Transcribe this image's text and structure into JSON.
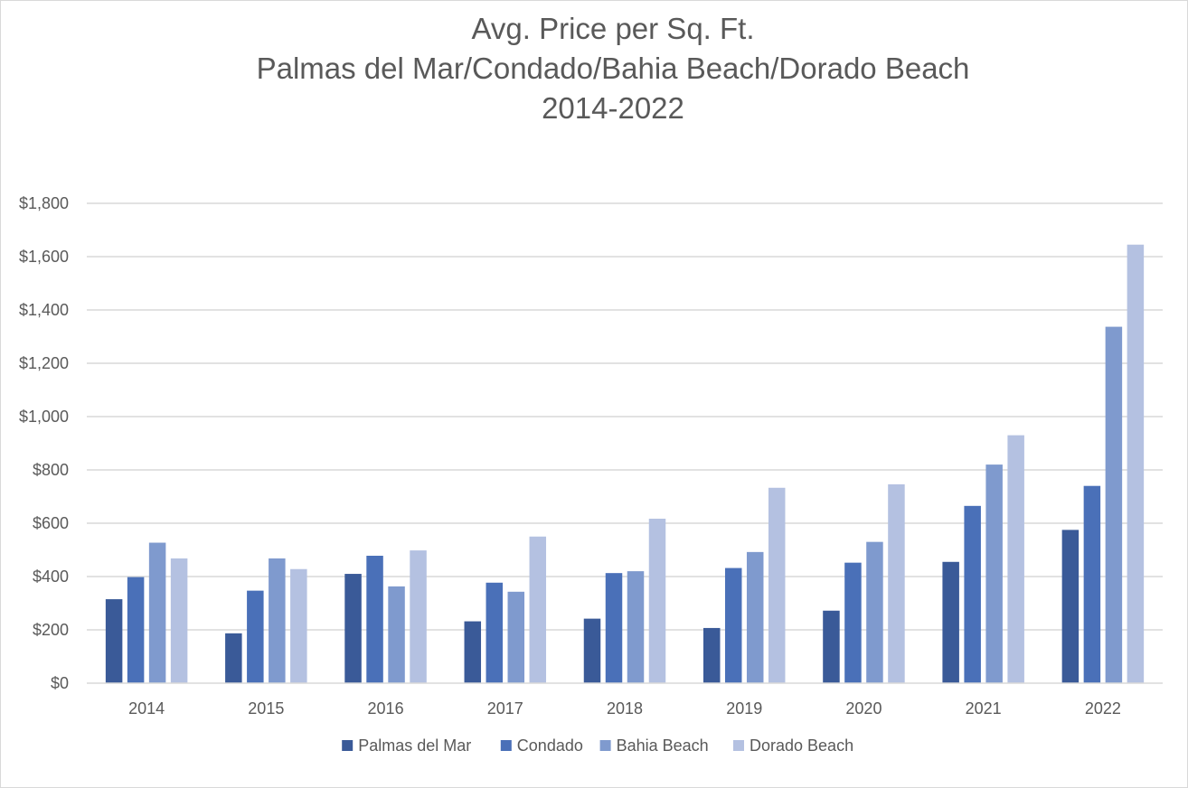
{
  "chart_data": {
    "type": "bar",
    "title_lines": [
      "Avg. Price per Sq. Ft.",
      "Palmas del Mar/Condado/Bahia Beach/Dorado Beach",
      "2014-2022"
    ],
    "xlabel": "",
    "ylabel": "",
    "categories": [
      "2014",
      "2015",
      "2016",
      "2017",
      "2018",
      "2019",
      "2020",
      "2021",
      "2022"
    ],
    "ylim": [
      0,
      1800
    ],
    "yticks": [
      0,
      200,
      400,
      600,
      800,
      1000,
      1200,
      1400,
      1600,
      1800
    ],
    "ytick_labels": [
      "$0",
      "$200",
      "$400",
      "$600",
      "$800",
      "$1,000",
      "$1,200",
      "$1,400",
      "$1,600",
      "$1,800"
    ],
    "grid": true,
    "legend_position": "bottom",
    "series": [
      {
        "name": "Palmas del Mar",
        "color": "#3a5a98",
        "values": [
          315,
          187,
          410,
          232,
          242,
          207,
          272,
          455,
          575
        ]
      },
      {
        "name": "Condado",
        "color": "#4a70b8",
        "values": [
          398,
          347,
          478,
          377,
          413,
          432,
          452,
          665,
          740
        ]
      },
      {
        "name": "Bahia Beach",
        "color": "#7f9ace",
        "values": [
          527,
          468,
          363,
          343,
          420,
          492,
          530,
          820,
          1337
        ]
      },
      {
        "name": "Dorado Beach",
        "color": "#b4c1e1",
        "values": [
          468,
          428,
          498,
          550,
          617,
          733,
          746,
          930,
          1645
        ]
      }
    ]
  }
}
